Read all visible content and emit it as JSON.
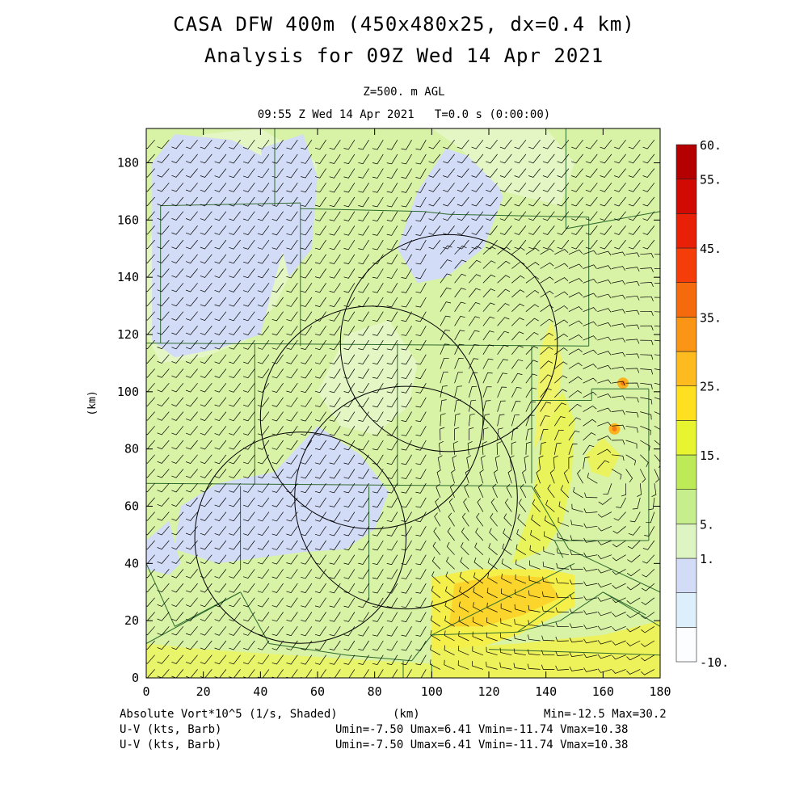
{
  "header": {
    "title_line1": "CASA DFW 400m (450x480x25, dx=0.4 km)",
    "title_line2": "Analysis for 09Z Wed 14 Apr 2021",
    "level": "Z=500. m AGL",
    "valid_time": "09:55 Z Wed 14 Apr 2021   T=0.0 s (0:00:00)"
  },
  "footer": {
    "field_label": "Absolute Vort*10^5 (1/s, Shaded)",
    "x_unit": "(km)",
    "minmax": "Min=-12.5 Max=30.2",
    "barb1_label": "U-V (kts, Barb)",
    "barb1_stats": "Umin=-7.50 Umax=6.41 Vmin=-11.74 Vmax=10.38",
    "barb2_label": "U-V (kts, Barb)",
    "barb2_stats": "Umin=-7.50 Umax=6.41 Vmin=-11.74 Vmax=10.38"
  },
  "chart_data": {
    "type": "heatmap",
    "title": "CASA DFW 400m (450x480x25, dx=0.4 km)",
    "subtitle": "Analysis for 09Z Wed 14 Apr 2021",
    "xlabel": "",
    "ylabel": "(km)",
    "xlim": [
      0,
      180
    ],
    "ylim": [
      0,
      192
    ],
    "x_ticks": [
      "0",
      "20",
      "40",
      "60",
      "80",
      "100",
      "120",
      "140",
      "160",
      "180"
    ],
    "y_ticks": [
      "0",
      "20",
      "40",
      "60",
      "80",
      "100",
      "120",
      "140",
      "160",
      "180"
    ],
    "grid": false,
    "field": "Absolute Vort*10^5 (1/s, Shaded)",
    "field_min": -12.5,
    "field_max": 30.2,
    "colorbar": {
      "labels": [
        "60.",
        "55.",
        "45.",
        "35.",
        "25.",
        "15.",
        "5.",
        "1.",
        "-10."
      ],
      "colors": [
        "#fbfdff",
        "#dceffa",
        "#d3dcf6",
        "#dcf5c2",
        "#c6ee8c",
        "#bdeb58",
        "#e7f430",
        "#fee020",
        "#fdbb20",
        "#fb9516",
        "#f66a0e",
        "#f53d09",
        "#e82008",
        "#d20a04",
        "#b40000"
      ]
    },
    "regions": [
      {
        "value_class": "blue",
        "x": [
          2,
          9
        ],
        "y": [
          110,
          190
        ],
        "color": "#d3dcf6"
      },
      {
        "value_class": "green",
        "x": [
          0,
          180
        ],
        "y": [
          0,
          192
        ],
        "color": "#d8f2a6"
      },
      {
        "value_class": "yellow",
        "x": [
          95,
          145
        ],
        "y": [
          12,
          38
        ],
        "color": "#f7e43c"
      }
    ],
    "radar_rings": [
      {
        "cx": 106,
        "cy": 117,
        "r": 38
      },
      {
        "cx": 79,
        "cy": 91,
        "r": 39
      },
      {
        "cx": 91,
        "cy": 63,
        "r": 39
      },
      {
        "cx": 54,
        "cy": 49,
        "r": 37
      }
    ],
    "hotspots": [
      {
        "x": 167,
        "y": 103,
        "value": 27
      },
      {
        "x": 164,
        "y": 87,
        "value": 25
      }
    ],
    "wind_barbs": "U-V (kts, Barb)",
    "umin": -7.5,
    "umax": 6.41,
    "vmin": -11.74,
    "vmax": 10.38
  }
}
